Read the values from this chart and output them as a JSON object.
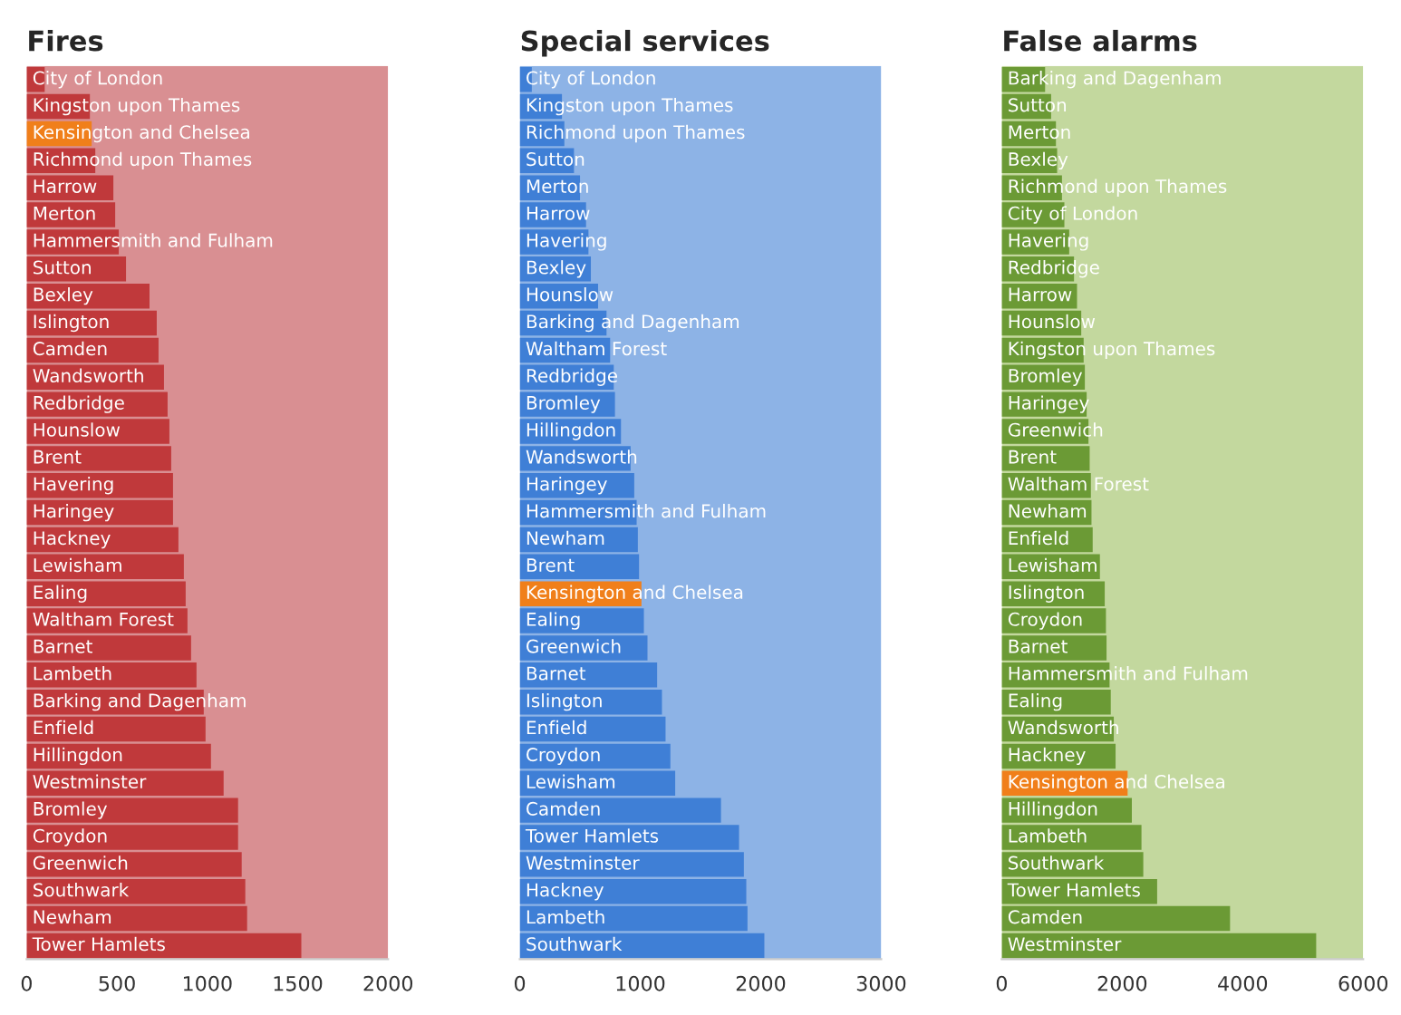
{
  "chart_data": [
    {
      "type": "bar",
      "title": "Fires",
      "orientation": "horizontal",
      "tick_labels": "x",
      "grid": false,
      "legend": false,
      "categories": [
        "City of London",
        "Kingston upon Thames",
        "Kensington and Chelsea",
        "Richmond upon Thames",
        "Harrow",
        "Merton",
        "Hammersmith and Fulham",
        "Sutton",
        "Bexley",
        "Islington",
        "Camden",
        "Wandsworth",
        "Redbridge",
        "Hounslow",
        "Brent",
        "Havering",
        "Haringey",
        "Hackney",
        "Lewisham",
        "Ealing",
        "Waltham Forest",
        "Barnet",
        "Lambeth",
        "Barking and Dagenham",
        "Enfield",
        "Hillingdon",
        "Westminster",
        "Bromley",
        "Croydon",
        "Greenwich",
        "Southwark",
        "Newham",
        "Tower Hamlets"
      ],
      "values": [
        100,
        350,
        360,
        380,
        480,
        490,
        510,
        550,
        680,
        720,
        730,
        760,
        780,
        790,
        800,
        810,
        810,
        840,
        870,
        880,
        890,
        910,
        940,
        980,
        990,
        1020,
        1090,
        1170,
        1170,
        1190,
        1210,
        1220,
        1520
      ],
      "colors": [
        "#c0393b",
        "#c0393b",
        "#f07f1a",
        "#c0393b",
        "#c0393b",
        "#c0393b",
        "#c0393b",
        "#c0393b",
        "#c0393b",
        "#c0393b",
        "#c0393b",
        "#c0393b",
        "#c0393b",
        "#c0393b",
        "#c0393b",
        "#c0393b",
        "#c0393b",
        "#c0393b",
        "#c0393b",
        "#c0393b",
        "#c0393b",
        "#c0393b",
        "#c0393b",
        "#c0393b",
        "#c0393b",
        "#c0393b",
        "#c0393b",
        "#c0393b",
        "#c0393b",
        "#c0393b",
        "#c0393b",
        "#c0393b",
        "#c0393b"
      ],
      "xlim": [
        0,
        2000
      ],
      "xticks": [
        0,
        500,
        1000,
        1500,
        2000
      ],
      "bands": [
        {
          "axis": "x",
          "from": 0,
          "to": 2000,
          "color": "#d98f92"
        }
      ]
    },
    {
      "type": "bar",
      "title": "Special services",
      "orientation": "horizontal",
      "tick_labels": "x",
      "grid": false,
      "legend": false,
      "categories": [
        "City of London",
        "Kingston upon Thames",
        "Richmond upon Thames",
        "Sutton",
        "Merton",
        "Harrow",
        "Havering",
        "Bexley",
        "Hounslow",
        "Barking and Dagenham",
        "Waltham Forest",
        "Redbridge",
        "Bromley",
        "Hillingdon",
        "Wandsworth",
        "Haringey",
        "Hammersmith and Fulham",
        "Newham",
        "Brent",
        "Kensington and Chelsea",
        "Ealing",
        "Greenwich",
        "Barnet",
        "Islington",
        "Enfield",
        "Croydon",
        "Lewisham",
        "Camden",
        "Tower Hamlets",
        "Westminster",
        "Hackney",
        "Lambeth",
        "Southwark"
      ],
      "values": [
        100,
        350,
        370,
        450,
        500,
        550,
        570,
        590,
        650,
        720,
        750,
        780,
        790,
        840,
        920,
        950,
        970,
        980,
        990,
        1010,
        1030,
        1060,
        1140,
        1180,
        1210,
        1250,
        1290,
        1670,
        1820,
        1860,
        1880,
        1890,
        2030
      ],
      "colors": [
        "#3f7fd6",
        "#3f7fd6",
        "#3f7fd6",
        "#3f7fd6",
        "#3f7fd6",
        "#3f7fd6",
        "#3f7fd6",
        "#3f7fd6",
        "#3f7fd6",
        "#3f7fd6",
        "#3f7fd6",
        "#3f7fd6",
        "#3f7fd6",
        "#3f7fd6",
        "#3f7fd6",
        "#3f7fd6",
        "#3f7fd6",
        "#3f7fd6",
        "#3f7fd6",
        "#f07f1a",
        "#3f7fd6",
        "#3f7fd6",
        "#3f7fd6",
        "#3f7fd6",
        "#3f7fd6",
        "#3f7fd6",
        "#3f7fd6",
        "#3f7fd6",
        "#3f7fd6",
        "#3f7fd6",
        "#3f7fd6",
        "#3f7fd6",
        "#3f7fd6"
      ],
      "xlim": [
        0,
        3000
      ],
      "xticks": [
        0,
        1000,
        2000,
        3000
      ],
      "bands": [
        {
          "axis": "x",
          "from": 0,
          "to": 3000,
          "color": "#8db3e6"
        }
      ]
    },
    {
      "type": "bar",
      "title": "False alarms",
      "orientation": "horizontal",
      "tick_labels": "x",
      "grid": false,
      "legend": false,
      "categories": [
        "Barking and Dagenham",
        "Sutton",
        "Merton",
        "Bexley",
        "Richmond upon Thames",
        "City of London",
        "Havering",
        "Redbridge",
        "Harrow",
        "Hounslow",
        "Kingston upon Thames",
        "Bromley",
        "Haringey",
        "Greenwich",
        "Brent",
        "Waltham Forest",
        "Newham",
        "Enfield",
        "Lewisham",
        "Islington",
        "Croydon",
        "Barnet",
        "Hammersmith and Fulham",
        "Ealing",
        "Wandsworth",
        "Hackney",
        "Kensington and Chelsea",
        "Hillingdon",
        "Lambeth",
        "Southwark",
        "Tower Hamlets",
        "Camden",
        "Westminster"
      ],
      "values": [
        720,
        820,
        900,
        920,
        1000,
        1040,
        1120,
        1200,
        1250,
        1320,
        1360,
        1380,
        1410,
        1440,
        1460,
        1480,
        1490,
        1510,
        1630,
        1710,
        1730,
        1740,
        1790,
        1810,
        1860,
        1890,
        2090,
        2160,
        2320,
        2350,
        2580,
        3790,
        5220
      ],
      "colors": [
        "#6b9a35",
        "#6b9a35",
        "#6b9a35",
        "#6b9a35",
        "#6b9a35",
        "#6b9a35",
        "#6b9a35",
        "#6b9a35",
        "#6b9a35",
        "#6b9a35",
        "#6b9a35",
        "#6b9a35",
        "#6b9a35",
        "#6b9a35",
        "#6b9a35",
        "#6b9a35",
        "#6b9a35",
        "#6b9a35",
        "#6b9a35",
        "#6b9a35",
        "#6b9a35",
        "#6b9a35",
        "#6b9a35",
        "#6b9a35",
        "#6b9a35",
        "#6b9a35",
        "#f07f1a",
        "#6b9a35",
        "#6b9a35",
        "#6b9a35",
        "#6b9a35",
        "#6b9a35",
        "#6b9a35"
      ],
      "xlim": [
        0,
        6000
      ],
      "xticks": [
        0,
        2000,
        4000,
        6000
      ],
      "bands": [
        {
          "axis": "x",
          "from": 0,
          "to": 6000,
          "color": "#c3d89e"
        }
      ]
    }
  ]
}
